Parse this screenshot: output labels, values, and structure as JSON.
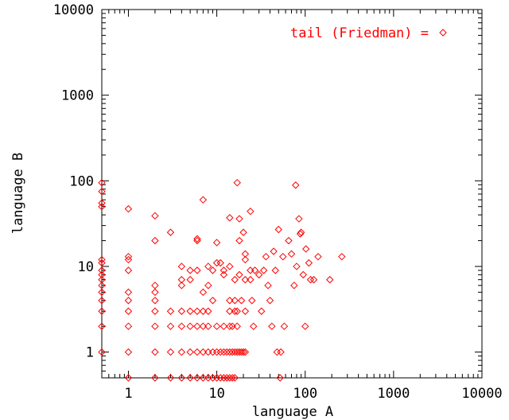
{
  "chart_data": {
    "type": "scatter",
    "title": "",
    "xlabel": "language A",
    "ylabel": "language B",
    "xscale": "log",
    "yscale": "log",
    "xlim": [
      0.5,
      10000
    ],
    "ylim": [
      0.5,
      10000
    ],
    "x_ticks": [
      {
        "value": 1,
        "label": "1"
      },
      {
        "value": 10,
        "label": "10"
      },
      {
        "value": 100,
        "label": "100"
      },
      {
        "value": 1000,
        "label": "1000"
      },
      {
        "value": 10000,
        "label": "10000"
      }
    ],
    "y_ticks": [
      {
        "value": 1,
        "label": "1"
      },
      {
        "value": 10,
        "label": "10"
      },
      {
        "value": 100,
        "label": "100"
      },
      {
        "value": 1000,
        "label": "1000"
      },
      {
        "value": 10000,
        "label": "10000"
      }
    ],
    "grid": false,
    "legend_position": "top-right",
    "series": [
      {
        "name": "tail (Friedman) =",
        "color": "#ff0000",
        "marker": "diamond",
        "points": [
          [
            0.5,
            95
          ],
          [
            0.5,
            75
          ],
          [
            0.5,
            55
          ],
          [
            0.5,
            50
          ],
          [
            0.5,
            12
          ],
          [
            0.5,
            11
          ],
          [
            0.5,
            9
          ],
          [
            0.5,
            8
          ],
          [
            0.5,
            7
          ],
          [
            0.5,
            6
          ],
          [
            0.5,
            5
          ],
          [
            0.5,
            4
          ],
          [
            0.5,
            3
          ],
          [
            0.5,
            2
          ],
          [
            0.5,
            1
          ],
          [
            1,
            47
          ],
          [
            1,
            13
          ],
          [
            1,
            12
          ],
          [
            1,
            9
          ],
          [
            1,
            5
          ],
          [
            1,
            4
          ],
          [
            1,
            3
          ],
          [
            1,
            2
          ],
          [
            1,
            1
          ],
          [
            1,
            0.5
          ],
          [
            2,
            39
          ],
          [
            2,
            20
          ],
          [
            2,
            6
          ],
          [
            2,
            5
          ],
          [
            2,
            4
          ],
          [
            2,
            3
          ],
          [
            2,
            2
          ],
          [
            2,
            1
          ],
          [
            2,
            0.5
          ],
          [
            3,
            25
          ],
          [
            3,
            3
          ],
          [
            3,
            2
          ],
          [
            3,
            1
          ],
          [
            3,
            0.5
          ],
          [
            4,
            10
          ],
          [
            4,
            7
          ],
          [
            4,
            6
          ],
          [
            4,
            3
          ],
          [
            4,
            2
          ],
          [
            4,
            1
          ],
          [
            4,
            0.5
          ],
          [
            5,
            9
          ],
          [
            5,
            7
          ],
          [
            5,
            3
          ],
          [
            5,
            2
          ],
          [
            5,
            1
          ],
          [
            5,
            0.5
          ],
          [
            6,
            21
          ],
          [
            6,
            20
          ],
          [
            6,
            9
          ],
          [
            6,
            3
          ],
          [
            6,
            2
          ],
          [
            6,
            1
          ],
          [
            6,
            0.5
          ],
          [
            7,
            60
          ],
          [
            7,
            5
          ],
          [
            7,
            3
          ],
          [
            7,
            2
          ],
          [
            7,
            1
          ],
          [
            7,
            0.5
          ],
          [
            8,
            10
          ],
          [
            8,
            6
          ],
          [
            8,
            3
          ],
          [
            8,
            2
          ],
          [
            8,
            1
          ],
          [
            8,
            0.5
          ],
          [
            9,
            9
          ],
          [
            9,
            4
          ],
          [
            9,
            1
          ],
          [
            9,
            0.5
          ],
          [
            10,
            19
          ],
          [
            10,
            11
          ],
          [
            10,
            2
          ],
          [
            10,
            1
          ],
          [
            10,
            0.5
          ],
          [
            11,
            11
          ],
          [
            11,
            1
          ],
          [
            11,
            0.5
          ],
          [
            12,
            9
          ],
          [
            12,
            8
          ],
          [
            12,
            2
          ],
          [
            12,
            1
          ],
          [
            12,
            0.5
          ],
          [
            13,
            1
          ],
          [
            13,
            0.5
          ],
          [
            14,
            37
          ],
          [
            14,
            10
          ],
          [
            14,
            4
          ],
          [
            14,
            3
          ],
          [
            14,
            2
          ],
          [
            14,
            1
          ],
          [
            14,
            0.5
          ],
          [
            15,
            2
          ],
          [
            15,
            1
          ],
          [
            15,
            0.5
          ],
          [
            16,
            7
          ],
          [
            16,
            4
          ],
          [
            16,
            3
          ],
          [
            16,
            1
          ],
          [
            16,
            0.5
          ],
          [
            17,
            95
          ],
          [
            17,
            3
          ],
          [
            17,
            2
          ],
          [
            17,
            1
          ],
          [
            18,
            36
          ],
          [
            18,
            20
          ],
          [
            18,
            8
          ],
          [
            18,
            1
          ],
          [
            19,
            4
          ],
          [
            19,
            1
          ],
          [
            20,
            25
          ],
          [
            20,
            1
          ],
          [
            21,
            14
          ],
          [
            21,
            12
          ],
          [
            21,
            7
          ],
          [
            21,
            3
          ],
          [
            21,
            1
          ],
          [
            24,
            44
          ],
          [
            24,
            9
          ],
          [
            24,
            7
          ],
          [
            25,
            4
          ],
          [
            26,
            2
          ],
          [
            27,
            9
          ],
          [
            30,
            8
          ],
          [
            32,
            3
          ],
          [
            34,
            9
          ],
          [
            36,
            13
          ],
          [
            38,
            6
          ],
          [
            40,
            4
          ],
          [
            42,
            2
          ],
          [
            44,
            15
          ],
          [
            46,
            9
          ],
          [
            48,
            1
          ],
          [
            50,
            27
          ],
          [
            52,
            0.5
          ],
          [
            53,
            1
          ],
          [
            56,
            13
          ],
          [
            58,
            2
          ],
          [
            65,
            20
          ],
          [
            70,
            14
          ],
          [
            75,
            6
          ],
          [
            78,
            89
          ],
          [
            80,
            10
          ],
          [
            85,
            36
          ],
          [
            88,
            24
          ],
          [
            90,
            25
          ],
          [
            95,
            8
          ],
          [
            100,
            2
          ],
          [
            102,
            16
          ],
          [
            110,
            11
          ],
          [
            115,
            7
          ],
          [
            125,
            7
          ],
          [
            140,
            13
          ],
          [
            190,
            7
          ],
          [
            260,
            13
          ]
        ]
      }
    ]
  }
}
